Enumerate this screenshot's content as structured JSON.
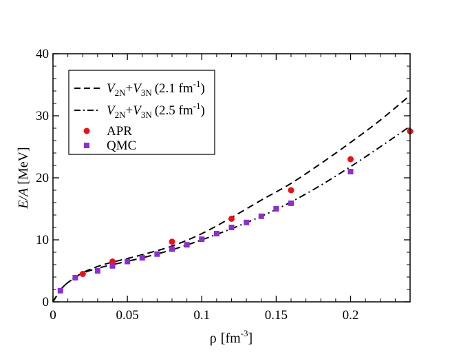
{
  "chart_data": {
    "type": "scatter",
    "xlabel": {
      "symbol": "ρ",
      "unit_open": "[fm",
      "unit_exp": "-3",
      "unit_close": "]"
    },
    "ylabel": {
      "symbol": "E/A",
      "unit": "[MeV]"
    },
    "xlim": [
      0,
      0.24
    ],
    "ylim": [
      0,
      40
    ],
    "x_ticks": [
      0,
      0.05,
      0.1,
      0.15,
      0.2
    ],
    "x_tick_labels": [
      "0",
      "0.05",
      "0.1",
      "0.15",
      "0.2"
    ],
    "y_ticks": [
      0,
      10,
      20,
      30,
      40
    ],
    "y_tick_labels": [
      "0",
      "10",
      "20",
      "30",
      "40"
    ],
    "legend_position": "top-left",
    "series": [
      {
        "name": "V2N+V3N (2.1 fm^-1)",
        "style": "dashed",
        "color": "#000000",
        "label": {
          "v1": "V",
          "s1": "2N",
          "plus": "+",
          "v2": "V",
          "s2": "3N",
          "paren_open": "(2.1 fm",
          "exp": "-1",
          "paren_close": ")"
        },
        "x": [
          0,
          0.005,
          0.01,
          0.02,
          0.03,
          0.04,
          0.06,
          0.08,
          0.1,
          0.12,
          0.14,
          0.16,
          0.18,
          0.2,
          0.22,
          0.24
        ],
        "y": [
          0,
          1.9,
          3.1,
          4.7,
          5.7,
          6.4,
          7.6,
          9.0,
          11.0,
          13.6,
          16.4,
          19.1,
          22.3,
          25.7,
          29.3,
          33.3
        ]
      },
      {
        "name": "V2N+V3N (2.5 fm^-1)",
        "style": "dashdot",
        "color": "#000000",
        "label": {
          "v1": "V",
          "s1": "2N",
          "plus": "+",
          "v2": "V",
          "s2": "3N",
          "paren_open": "(2.5 fm",
          "exp": "-1",
          "paren_close": ")"
        },
        "x": [
          0,
          0.005,
          0.01,
          0.02,
          0.03,
          0.04,
          0.06,
          0.08,
          0.1,
          0.12,
          0.14,
          0.16,
          0.18,
          0.2,
          0.22,
          0.24
        ],
        "y": [
          0,
          1.9,
          3.1,
          4.6,
          5.4,
          6.0,
          7.1,
          8.4,
          10.0,
          11.8,
          13.8,
          16.1,
          18.8,
          21.8,
          25.0,
          28.3
        ]
      },
      {
        "name": "APR",
        "style": "markers-circle",
        "color": "#e8131a",
        "x": [
          0.02,
          0.04,
          0.08,
          0.12,
          0.16,
          0.2,
          0.24
        ],
        "y": [
          4.5,
          6.5,
          9.7,
          13.4,
          18.0,
          23.0,
          27.5
        ]
      },
      {
        "name": "QMC",
        "style": "markers-square",
        "color": "#8b2fd0",
        "x": [
          0.005,
          0.015,
          0.03,
          0.04,
          0.05,
          0.06,
          0.07,
          0.08,
          0.09,
          0.1,
          0.11,
          0.12,
          0.13,
          0.14,
          0.15,
          0.16,
          0.2
        ],
        "y": [
          1.8,
          3.9,
          5.0,
          5.8,
          6.5,
          7.1,
          7.7,
          8.5,
          9.2,
          10.1,
          11.0,
          12.0,
          12.8,
          13.8,
          15.0,
          15.9,
          21.0
        ]
      }
    ]
  }
}
